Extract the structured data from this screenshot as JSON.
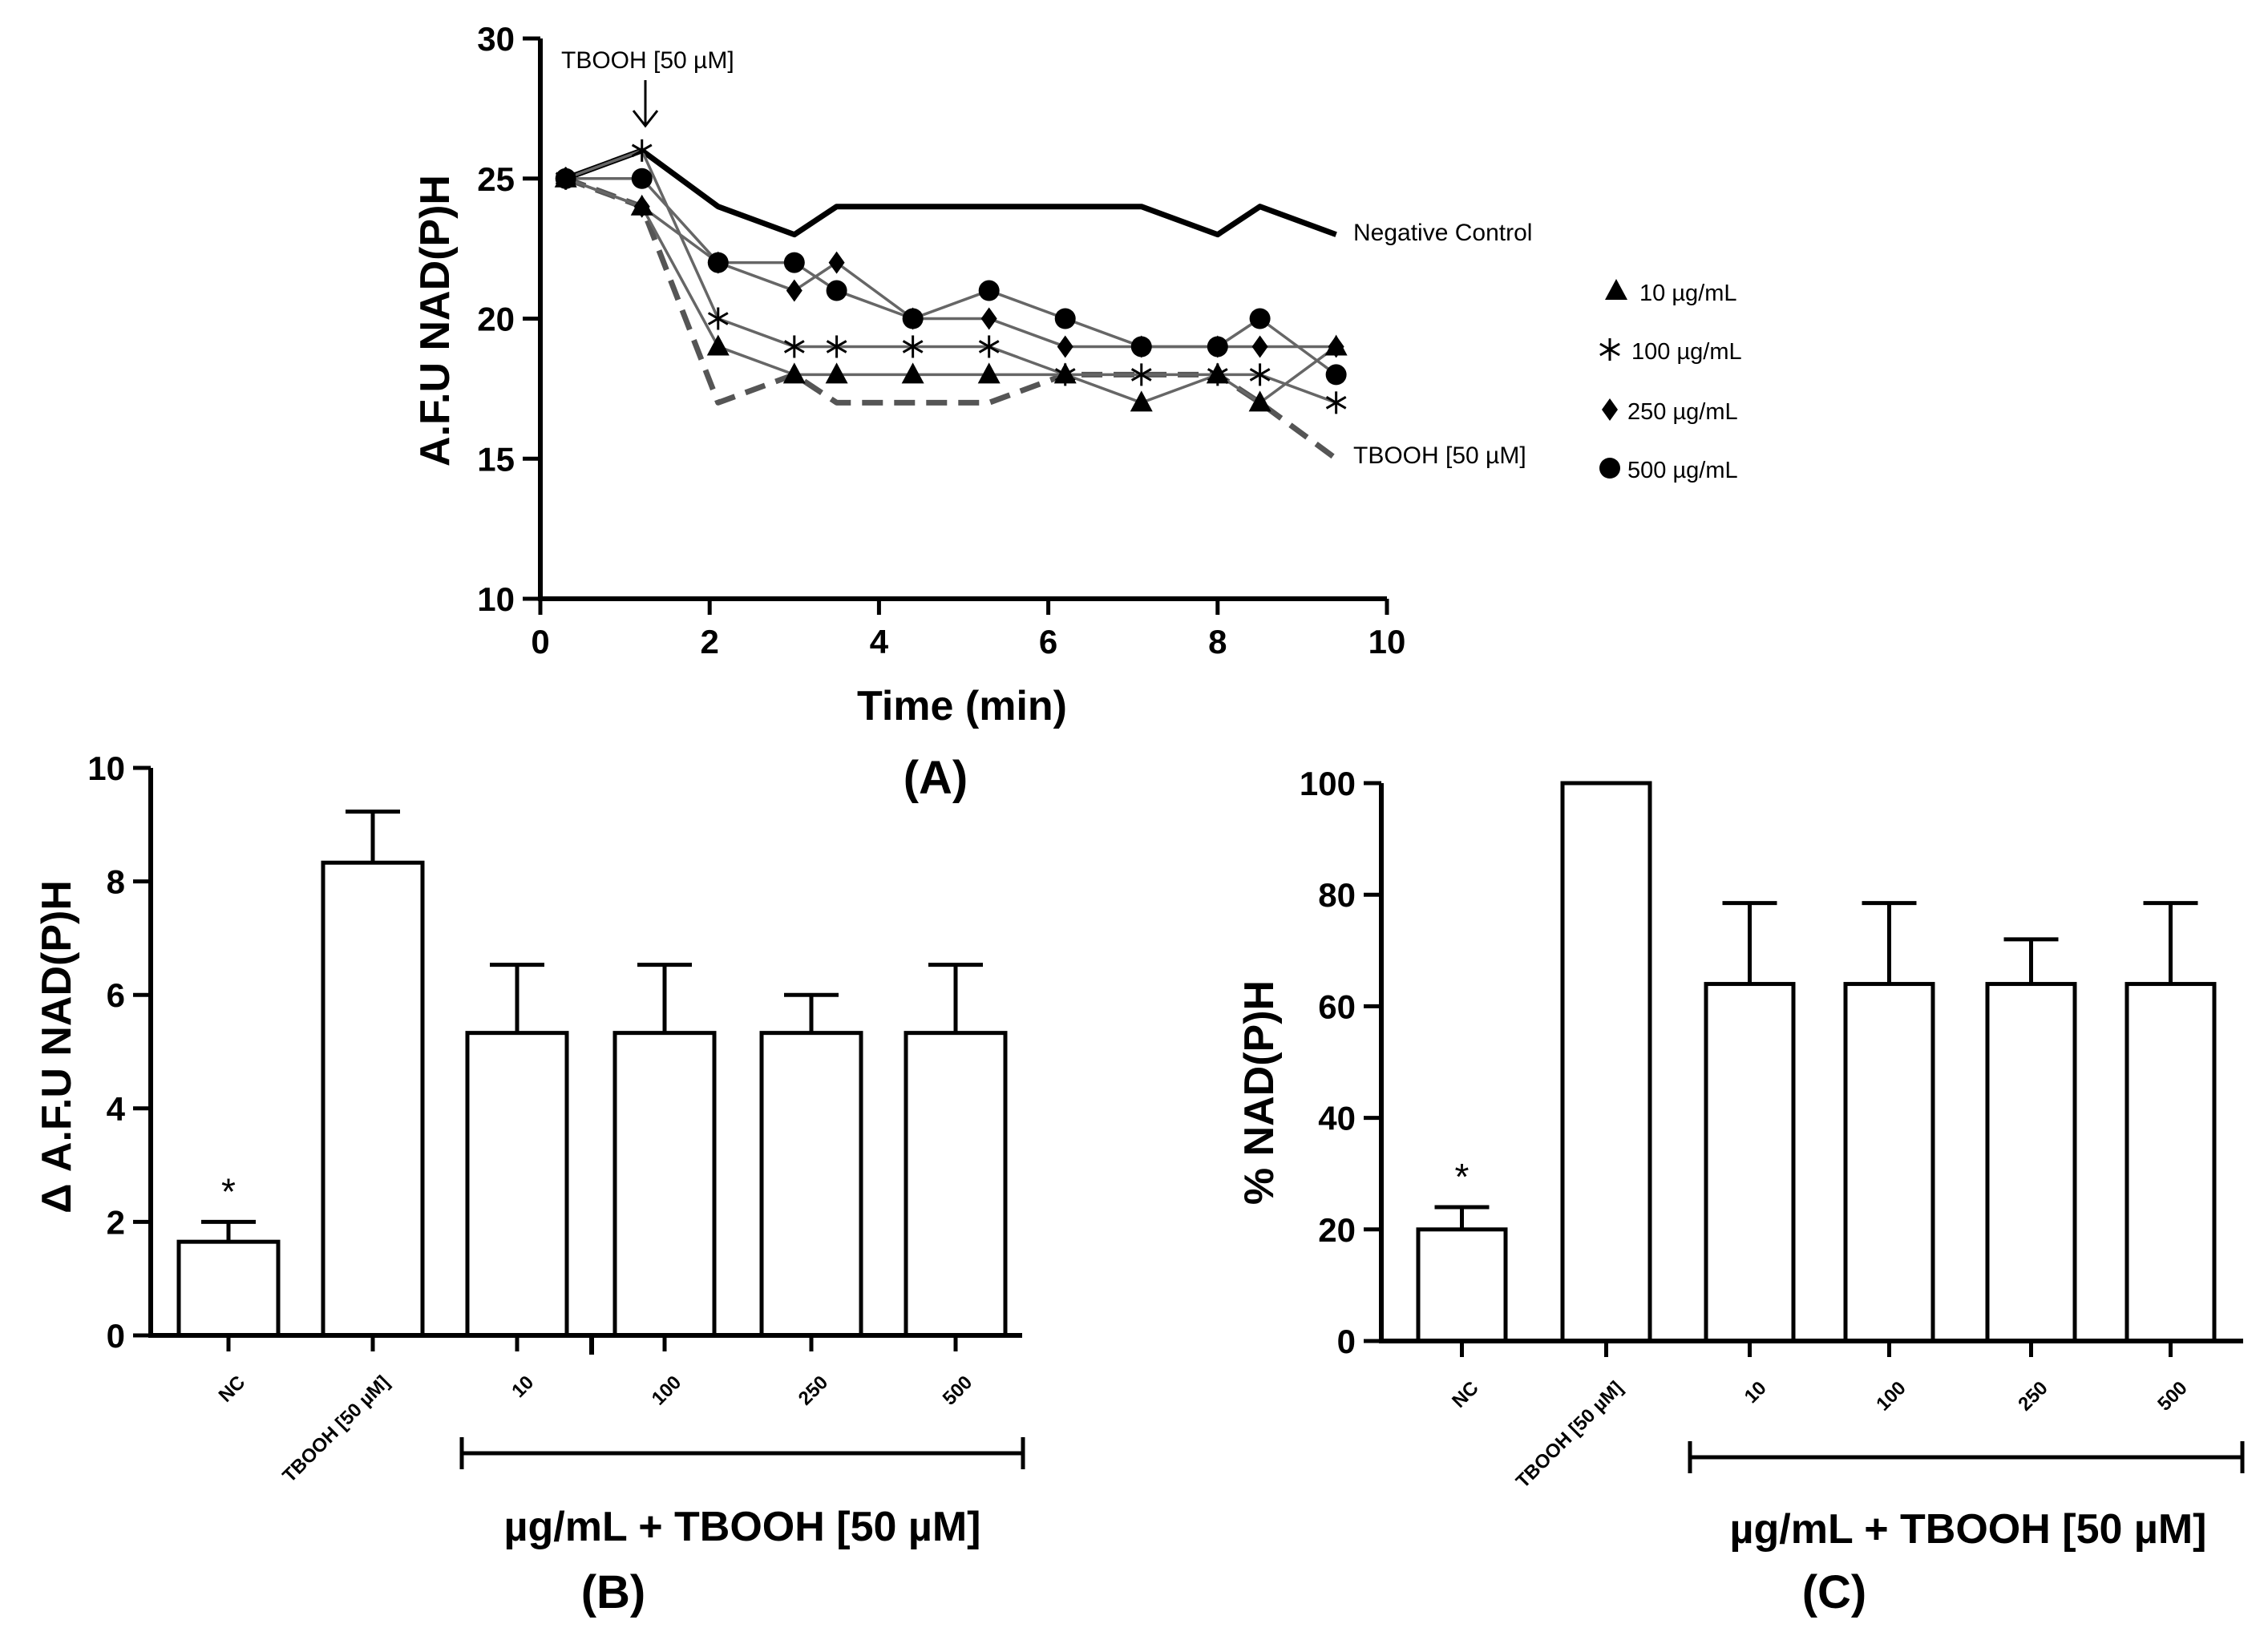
{
  "chart_data": [
    {
      "panel": "(A)",
      "type": "line",
      "xlabel": "Time (min)",
      "ylabel": "A.F.U NAD(P)H",
      "xlim": [
        0,
        10
      ],
      "ylim": [
        10,
        30
      ],
      "xticks": [
        0,
        2,
        4,
        6,
        8,
        10
      ],
      "yticks": [
        10,
        15,
        20,
        25,
        30
      ],
      "annotation": "TBOOH [50 µM]",
      "series": [
        {
          "name": "Negative Control",
          "style": "thick-solid",
          "marker": "none",
          "x": [
            0.3,
            1.2,
            2.1,
            3.0,
            3.5,
            4.4,
            5.3,
            6.2,
            7.1,
            8.0,
            8.5,
            9.4
          ],
          "y": [
            25,
            26,
            24,
            23,
            24,
            24,
            24,
            24,
            24,
            23,
            24,
            23
          ]
        },
        {
          "name": "TBOOH [50 µM]",
          "style": "dashed",
          "marker": "none",
          "x": [
            0.3,
            1.2,
            2.1,
            3.0,
            3.5,
            4.4,
            5.3,
            6.2,
            7.1,
            8.0,
            8.5,
            9.4
          ],
          "y": [
            25,
            24,
            17,
            18,
            17,
            17,
            17,
            18,
            18,
            18,
            17,
            15
          ]
        },
        {
          "name": "10 µg/mL",
          "style": "thin-solid",
          "marker": "triangle",
          "x": [
            0.3,
            1.2,
            2.1,
            3.0,
            3.5,
            4.4,
            5.3,
            6.2,
            7.1,
            8.0,
            8.5,
            9.4
          ],
          "y": [
            25,
            24,
            19,
            18,
            18,
            18,
            18,
            18,
            17,
            18,
            17,
            19
          ]
        },
        {
          "name": "100 µg/mL",
          "style": "thin-solid",
          "marker": "asterisk",
          "x": [
            0.3,
            1.2,
            2.1,
            3.0,
            3.5,
            4.4,
            5.3,
            6.2,
            7.1,
            8.0,
            8.5,
            9.4
          ],
          "y": [
            25,
            26,
            20,
            19,
            19,
            19,
            19,
            18,
            18,
            18,
            18,
            17
          ]
        },
        {
          "name": "250 µg/mL",
          "style": "thin-solid",
          "marker": "diamond",
          "x": [
            0.3,
            1.2,
            2.1,
            3.0,
            3.5,
            4.4,
            5.3,
            6.2,
            7.1,
            8.0,
            8.5,
            9.4
          ],
          "y": [
            25,
            24,
            22,
            21,
            22,
            20,
            20,
            19,
            19,
            19,
            19,
            19
          ]
        },
        {
          "name": "500 µg/mL",
          "style": "thin-solid",
          "marker": "circle",
          "x": [
            0.3,
            1.2,
            2.1,
            3.0,
            3.5,
            4.4,
            5.3,
            6.2,
            7.1,
            8.0,
            8.5,
            9.4
          ],
          "y": [
            25,
            25,
            22,
            22,
            21,
            20,
            21,
            20,
            19,
            19,
            20,
            18
          ]
        }
      ],
      "legend": [
        "10 µg/mL",
        "100 µg/mL",
        "250 µg/mL",
        "500 µg/mL"
      ],
      "line_labels": [
        "Negative Control",
        "TBOOH [50 µM]"
      ]
    },
    {
      "panel": "(B)",
      "type": "bar",
      "ylabel": "Δ A.F.U NAD(P)H",
      "ylim": [
        0,
        10
      ],
      "yticks": [
        0,
        2,
        4,
        6,
        8,
        10
      ],
      "categories": [
        "NC",
        "TBOOH [50 µM]",
        "10",
        "100",
        "250",
        "500"
      ],
      "values": [
        1.65,
        8.33,
        5.33,
        5.33,
        5.33,
        5.33
      ],
      "errors": [
        0.35,
        0.9,
        1.2,
        1.2,
        0.67,
        1.2
      ],
      "significance": [
        "*",
        "",
        "",
        "",
        "",
        ""
      ],
      "group_label": "µg/mL + TBOOH [50 µM]"
    },
    {
      "panel": "(C)",
      "type": "bar",
      "ylabel": "% NAD(P)H",
      "ylim": [
        0,
        100
      ],
      "yticks": [
        0,
        20,
        40,
        60,
        80,
        100
      ],
      "categories": [
        "NC",
        "TBOOH [50 µM]",
        "10",
        "100",
        "250",
        "500"
      ],
      "values": [
        20,
        100,
        64,
        64,
        64,
        64
      ],
      "errors": [
        4,
        0,
        14.5,
        14.5,
        8,
        14.5
      ],
      "significance": [
        "*",
        "",
        "",
        "",
        "",
        ""
      ],
      "group_label": "µg/mL + TBOOH [50 µM]"
    }
  ]
}
